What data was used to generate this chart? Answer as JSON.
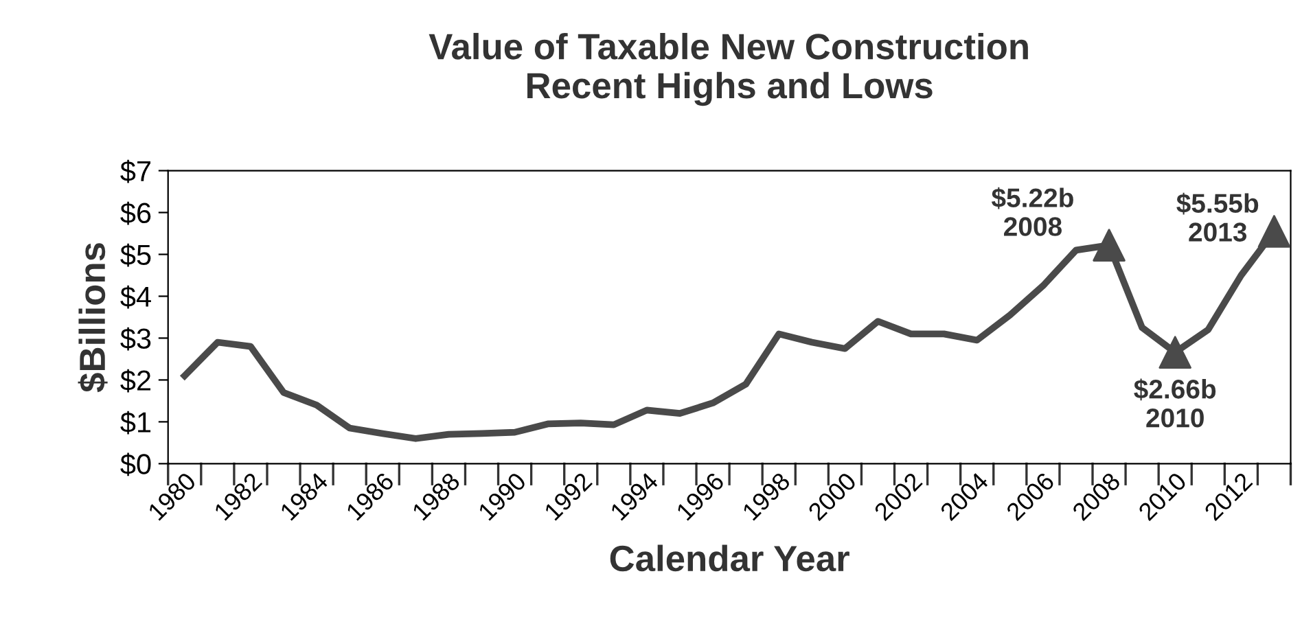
{
  "chart_data": {
    "type": "line",
    "title": "Value of Taxable New Construction\nRecent Highs and Lows",
    "xlabel": "Calendar Year",
    "ylabel": "$Billions",
    "categories": [
      "1980",
      null,
      "1982",
      null,
      "1984",
      null,
      "1986",
      null,
      "1988",
      null,
      "1990",
      null,
      "1992",
      null,
      "1994",
      null,
      "1996",
      null,
      "1998",
      null,
      "2000",
      null,
      "2002",
      null,
      "2004",
      null,
      "2006",
      null,
      "2008",
      null,
      "2010",
      null,
      "2012",
      null
    ],
    "series": [
      {
        "color": "#4a4a4a",
        "marker": "none",
        "values": [
          2.1,
          2.9,
          2.8,
          1.7,
          1.4,
          0.85,
          0.72,
          0.6,
          0.7,
          0.72,
          0.75,
          0.95,
          0.97,
          0.93,
          1.28,
          1.2,
          1.45,
          1.9,
          3.1,
          2.9,
          2.75,
          3.4,
          3.1,
          3.1,
          2.95,
          3.55,
          4.25,
          5.1,
          5.22,
          3.25,
          2.66,
          3.2,
          4.5,
          5.55
        ]
      },
      {
        "type": "scatter",
        "color": "#4a4a4a",
        "marker": "triangle",
        "values": [
          null,
          null,
          null,
          null,
          null,
          null,
          null,
          null,
          null,
          null,
          null,
          null,
          null,
          null,
          null,
          null,
          null,
          null,
          null,
          null,
          null,
          null,
          null,
          null,
          null,
          null,
          null,
          null,
          5.22,
          null,
          2.66,
          null,
          null,
          5.55
        ]
      }
    ],
    "ylim": [
      0,
      7
    ],
    "yticks": [
      {
        "value": 0,
        "label": "$0"
      },
      {
        "value": 1,
        "label": "$1"
      },
      {
        "value": 2,
        "label": "$2"
      },
      {
        "value": 3,
        "label": "$3"
      },
      {
        "value": 4,
        "label": "$4"
      },
      {
        "value": 5,
        "label": "$5"
      },
      {
        "value": 6,
        "label": "$6"
      },
      {
        "value": 7,
        "label": "$7"
      }
    ],
    "annotations": [
      {
        "text": "$5.22b\n2008",
        "x": "2008",
        "y": 5.22
      },
      {
        "text": "$2.66b\n2010",
        "x": "2010",
        "y": 2.66
      },
      "$5.55b\n2013"
    ],
    "grid": false,
    "legend": false
  }
}
